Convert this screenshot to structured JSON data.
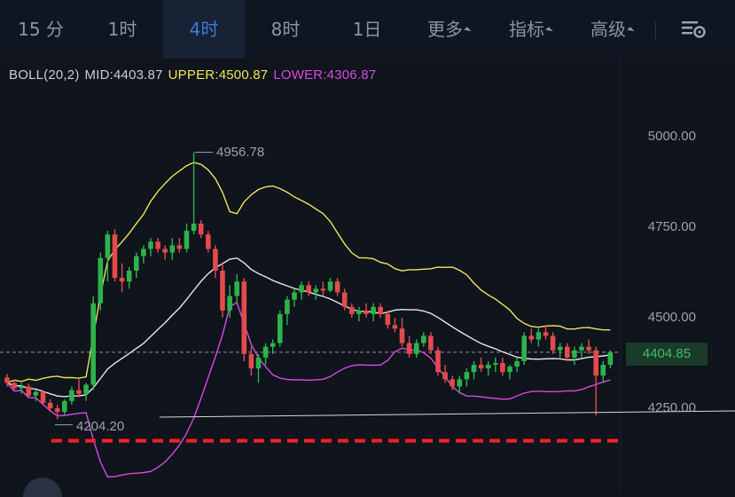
{
  "tabs": {
    "items": [
      {
        "label": "15 分",
        "active": false
      },
      {
        "label": "1时",
        "active": false
      },
      {
        "label": "4时",
        "active": true
      },
      {
        "label": "8时",
        "active": false
      },
      {
        "label": "1日",
        "active": false
      },
      {
        "label": "更多",
        "active": false,
        "dropdown": true
      },
      {
        "label": "指标",
        "active": false,
        "dropdown": true
      },
      {
        "label": "高级",
        "active": false,
        "dropdown": true
      }
    ],
    "settings_icon": "settings-sliders-icon"
  },
  "indicator": {
    "name": "BOLL(20,2)",
    "mid": "MID:4403.87",
    "upper": "UPPER:4500.87",
    "lower": "LOWER:4306.87"
  },
  "price_axis": [
    "5000.00",
    "4750.00",
    "4500.00",
    "4250.00"
  ],
  "current_price": "4404.85",
  "annotations": {
    "high": "4956.78",
    "low": "4204.20"
  },
  "colors": {
    "up": "#2fb24b",
    "down": "#e34b4b",
    "upper_band": "#f0e45a",
    "mid_band": "#e8e8e8",
    "lower_band": "#d54be0",
    "active_tab": "#3a7bd5",
    "support_line": "#ff2020"
  },
  "chart_data": {
    "type": "candlestick",
    "y_axis_ticks": [
      5000,
      4750,
      4500,
      4250
    ],
    "current_price": 4404.85,
    "marked_high": 4956.78,
    "marked_low": 4204.2,
    "boll": {
      "period": 20,
      "stddev": 2,
      "mid": 4403.87,
      "upper": 4500.87,
      "lower": 4306.87
    },
    "candles": [
      [
        4335,
        4345,
        4310,
        4320
      ],
      [
        4320,
        4330,
        4300,
        4305
      ],
      [
        4305,
        4320,
        4290,
        4310
      ],
      [
        4310,
        4318,
        4280,
        4285
      ],
      [
        4285,
        4300,
        4270,
        4295
      ],
      [
        4295,
        4300,
        4260,
        4265
      ],
      [
        4265,
        4275,
        4240,
        4250
      ],
      [
        4250,
        4260,
        4220,
        4240
      ],
      [
        4240,
        4275,
        4230,
        4270
      ],
      [
        4270,
        4310,
        4260,
        4300
      ],
      [
        4300,
        4330,
        4280,
        4290
      ],
      [
        4290,
        4320,
        4270,
        4315
      ],
      [
        4315,
        4560,
        4300,
        4540
      ],
      [
        4540,
        4680,
        4520,
        4665
      ],
      [
        4665,
        4740,
        4600,
        4730
      ],
      [
        4730,
        4745,
        4600,
        4610
      ],
      [
        4610,
        4650,
        4570,
        4600
      ],
      [
        4600,
        4640,
        4580,
        4630
      ],
      [
        4630,
        4680,
        4610,
        4670
      ],
      [
        4670,
        4700,
        4650,
        4690
      ],
      [
        4690,
        4720,
        4670,
        4710
      ],
      [
        4710,
        4720,
        4680,
        4690
      ],
      [
        4690,
        4700,
        4660,
        4680
      ],
      [
        4680,
        4720,
        4660,
        4700
      ],
      [
        4700,
        4720,
        4680,
        4690
      ],
      [
        4690,
        4760,
        4680,
        4740
      ],
      [
        4740,
        4957,
        4730,
        4760
      ],
      [
        4760,
        4770,
        4720,
        4730
      ],
      [
        4730,
        4740,
        4680,
        4690
      ],
      [
        4690,
        4700,
        4610,
        4630
      ],
      [
        4630,
        4650,
        4500,
        4520
      ],
      [
        4520,
        4590,
        4500,
        4560
      ],
      [
        4560,
        4620,
        4540,
        4600
      ],
      [
        4600,
        4610,
        4380,
        4400
      ],
      [
        4400,
        4420,
        4340,
        4360
      ],
      [
        4360,
        4400,
        4320,
        4390
      ],
      [
        4390,
        4430,
        4370,
        4420
      ],
      [
        4420,
        4440,
        4400,
        4430
      ],
      [
        4430,
        4520,
        4420,
        4510
      ],
      [
        4510,
        4560,
        4480,
        4550
      ],
      [
        4550,
        4580,
        4530,
        4570
      ],
      [
        4570,
        4600,
        4550,
        4590
      ],
      [
        4590,
        4600,
        4560,
        4570
      ],
      [
        4570,
        4590,
        4550,
        4580
      ],
      [
        4580,
        4600,
        4560,
        4575
      ],
      [
        4575,
        4610,
        4570,
        4600
      ],
      [
        4600,
        4610,
        4560,
        4570
      ],
      [
        4570,
        4580,
        4520,
        4530
      ],
      [
        4530,
        4540,
        4500,
        4510
      ],
      [
        4510,
        4530,
        4490,
        4520
      ],
      [
        4520,
        4540,
        4500,
        4510
      ],
      [
        4510,
        4540,
        4490,
        4530
      ],
      [
        4530,
        4540,
        4500,
        4510
      ],
      [
        4510,
        4520,
        4470,
        4480
      ],
      [
        4480,
        4500,
        4460,
        4470
      ],
      [
        4470,
        4500,
        4420,
        4430
      ],
      [
        4430,
        4450,
        4390,
        4400
      ],
      [
        4400,
        4440,
        4390,
        4430
      ],
      [
        4430,
        4460,
        4420,
        4450
      ],
      [
        4450,
        4460,
        4400,
        4410
      ],
      [
        4410,
        4420,
        4340,
        4350
      ],
      [
        4350,
        4370,
        4320,
        4330
      ],
      [
        4330,
        4340,
        4300,
        4310
      ],
      [
        4310,
        4340,
        4290,
        4330
      ],
      [
        4330,
        4360,
        4310,
        4350
      ],
      [
        4350,
        4380,
        4330,
        4370
      ],
      [
        4370,
        4390,
        4350,
        4360
      ],
      [
        4360,
        4380,
        4340,
        4370
      ],
      [
        4370,
        4390,
        4350,
        4375
      ],
      [
        4375,
        4390,
        4340,
        4350
      ],
      [
        4350,
        4370,
        4330,
        4365
      ],
      [
        4365,
        4390,
        4350,
        4380
      ],
      [
        4380,
        4460,
        4370,
        4450
      ],
      [
        4450,
        4470,
        4430,
        4440
      ],
      [
        4440,
        4470,
        4420,
        4460
      ],
      [
        4460,
        4480,
        4440,
        4450
      ],
      [
        4450,
        4460,
        4400,
        4410
      ],
      [
        4410,
        4430,
        4390,
        4420
      ],
      [
        4420,
        4430,
        4380,
        4390
      ],
      [
        4390,
        4420,
        4370,
        4410
      ],
      [
        4410,
        4430,
        4390,
        4420
      ],
      [
        4420,
        4440,
        4400,
        4410
      ],
      [
        4410,
        4420,
        4230,
        4340
      ],
      [
        4340,
        4380,
        4320,
        4370
      ],
      [
        4370,
        4410,
        4360,
        4404.85
      ]
    ]
  }
}
